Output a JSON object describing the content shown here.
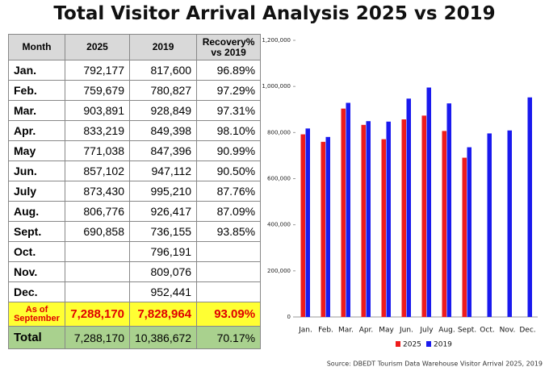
{
  "title": "Total Visitor Arrival Analysis 2025 vs 2019",
  "table": {
    "header": [
      "Month",
      "2025",
      "2019",
      "Recovery% vs 2019"
    ],
    "rows": [
      [
        "Jan.",
        "792,177",
        "817,600",
        "96.89%"
      ],
      [
        "Feb.",
        "759,679",
        "780,827",
        "97.29%"
      ],
      [
        "Mar.",
        "903,891",
        "928,849",
        "97.31%"
      ],
      [
        "Apr.",
        "833,219",
        "849,398",
        "98.10%"
      ],
      [
        "May",
        "771,038",
        "847,396",
        "90.99%"
      ],
      [
        "Jun.",
        "857,102",
        "947,112",
        "90.50%"
      ],
      [
        "July",
        "873,430",
        "995,210",
        "87.76%"
      ],
      [
        "Aug.",
        "806,776",
        "926,417",
        "87.09%"
      ],
      [
        "Sept.",
        "690,858",
        "736,155",
        "93.85%"
      ],
      [
        "Oct.",
        null,
        "796,191",
        null
      ],
      [
        "Nov.",
        null,
        "809,076",
        null
      ],
      [
        "Dec.",
        null,
        "952,441",
        null
      ]
    ],
    "as_of": [
      "As of September",
      "7,288,170",
      "7,828,964",
      "93.09%"
    ],
    "total": [
      "Total",
      "7,288,170",
      "10,386,672",
      "70.17%"
    ]
  },
  "chart_data": {
    "type": "bar",
    "categories": [
      "Jan.",
      "Feb.",
      "Mar.",
      "Apr.",
      "May",
      "Jun.",
      "July",
      "Aug.",
      "Sept.",
      "Oct.",
      "Nov.",
      "Dec."
    ],
    "series": [
      {
        "name": "2025",
        "color": "#ee1c1c",
        "values": [
          792177,
          759679,
          903891,
          833219,
          771038,
          857102,
          873430,
          806776,
          690858,
          null,
          null,
          null
        ]
      },
      {
        "name": "2019",
        "color": "#1a1aee",
        "values": [
          817600,
          780827,
          928849,
          849398,
          847396,
          947112,
          995210,
          926417,
          736155,
          796191,
          809076,
          952441
        ]
      }
    ],
    "ylim": [
      0,
      1200000
    ],
    "yticks": [
      0,
      {
        "value": 200000,
        "label": "200,000"
      },
      {
        "value": 400000,
        "label": "400,000"
      },
      {
        "value": 600000,
        "label": "600,000"
      },
      {
        "value": 800000,
        "label": "800,000"
      },
      {
        "value": 1000000,
        "label": "1,000,000"
      },
      {
        "value": 1200000,
        "label": "1,200,000"
      }
    ],
    "legend": "bottom",
    "source": "Source: DBEDT Tourism Data Warehouse Visitor Arrival 2025, 2019"
  }
}
